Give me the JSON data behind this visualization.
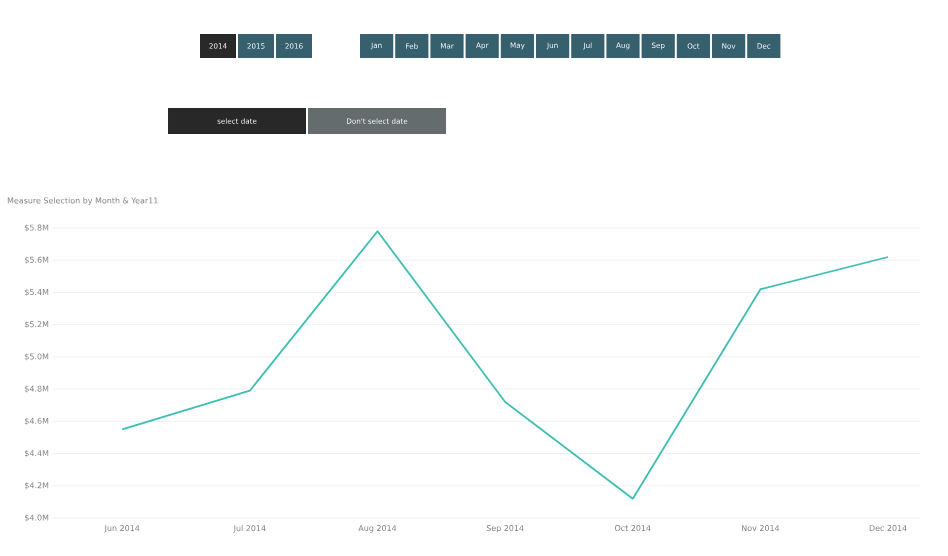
{
  "chart_data": {
    "type": "line",
    "title": "Measure Selection by Month & Year11",
    "categories": [
      "Jun 2014",
      "Jul 2014",
      "Aug 2014",
      "Sep 2014",
      "Oct 2014",
      "Nov 2014",
      "Dec 2014"
    ],
    "series": [
      {
        "color": "#3cbfb1",
        "values": [
          4.55,
          4.79,
          5.78,
          4.72,
          4.12,
          5.42,
          5.62
        ]
      }
    ],
    "ylim": [
      4.0,
      5.8
    ],
    "yticks": [
      {
        "value": 4.0,
        "label": "$4.0M"
      },
      {
        "value": 4.2,
        "label": "$4.2M"
      },
      {
        "value": 4.4,
        "label": "$4.4M"
      },
      {
        "value": 4.6,
        "label": "$4.6M"
      },
      {
        "value": 4.8,
        "label": "$4.8M"
      },
      {
        "value": 5.0,
        "label": "$5.0M"
      },
      {
        "value": 5.2,
        "label": "$5.2M"
      },
      {
        "value": 5.4,
        "label": "$5.4M"
      },
      {
        "value": 5.6,
        "label": "$5.6M"
      },
      {
        "value": 5.8,
        "label": "$5.8M"
      }
    ],
    "grid": "y",
    "marker": "none",
    "line_style": "solid",
    "annotations": [
      "2014",
      "2015",
      "2016",
      "Jan",
      "Feb",
      "Mar",
      "Apr",
      "May",
      "Jun",
      "Jul",
      "Aug",
      "Sep",
      "Oct",
      "Nov",
      "Dec",
      "select date",
      "Don't select date"
    ]
  }
}
